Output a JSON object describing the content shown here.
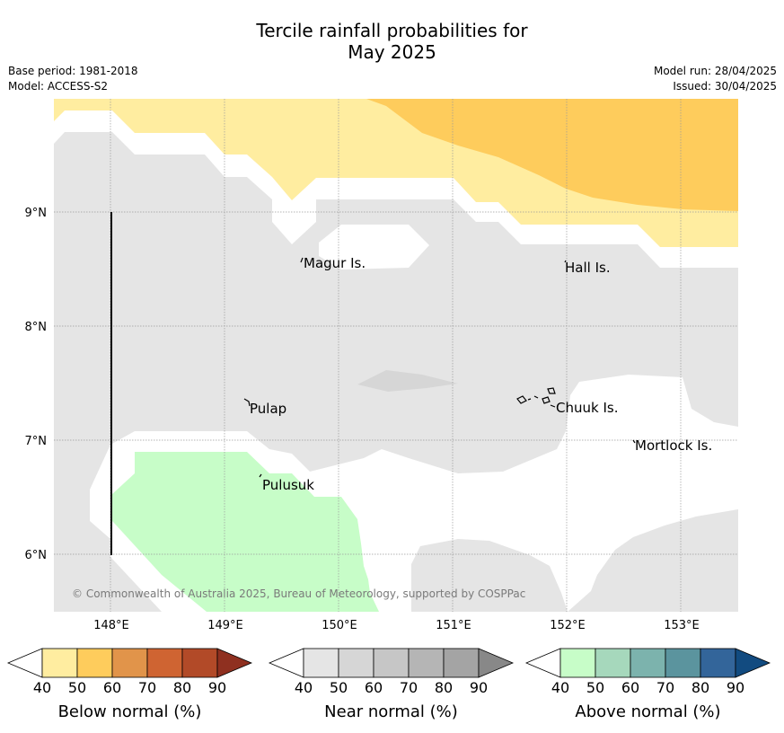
{
  "title_line1": "Tercile rainfall probabilities for",
  "title_line2": "May 2025",
  "base_period": "Base period: 1981-2018",
  "model": "Model: ACCESS-S2",
  "model_run": "Model run: 28/04/2025",
  "issued": "Issued: 30/04/2025",
  "copyright": "© Commonwealth of Australia 2025, Bureau of Meteorology, supported by COSPPac",
  "map": {
    "lon_ticks": [
      "148°E",
      "149°E",
      "150°E",
      "151°E",
      "152°E",
      "153°E"
    ],
    "lat_ticks": [
      "9°N",
      "8°N",
      "7°N",
      "6°N"
    ],
    "places": [
      {
        "name": "Magur Is."
      },
      {
        "name": "Hall Is."
      },
      {
        "name": "Pulap"
      },
      {
        "name": "Chuuk Is."
      },
      {
        "name": "Mortlock Is."
      },
      {
        "name": "Pulusuk"
      }
    ]
  },
  "colorbars": [
    {
      "title": "Below normal (%)",
      "ticks": [
        "40",
        "50",
        "60",
        "70",
        "80",
        "90"
      ],
      "colors": [
        "#ffeda0",
        "#fecc5c",
        "#e1944a",
        "#cf6432",
        "#b24a28",
        "#8f3020"
      ]
    },
    {
      "title": "Near normal (%)",
      "ticks": [
        "40",
        "50",
        "60",
        "70",
        "80",
        "90"
      ],
      "colors": [
        "#e5e5e5",
        "#d6d6d6",
        "#c6c6c6",
        "#b5b5b5",
        "#a4a4a4",
        "#888888"
      ]
    },
    {
      "title": "Above normal (%)",
      "ticks": [
        "40",
        "50",
        "60",
        "70",
        "80",
        "90"
      ],
      "colors": [
        "#c7fdc8",
        "#a6d8bc",
        "#7cb3ad",
        "#5b949e",
        "#33659a",
        "#124b80"
      ]
    }
  ]
}
